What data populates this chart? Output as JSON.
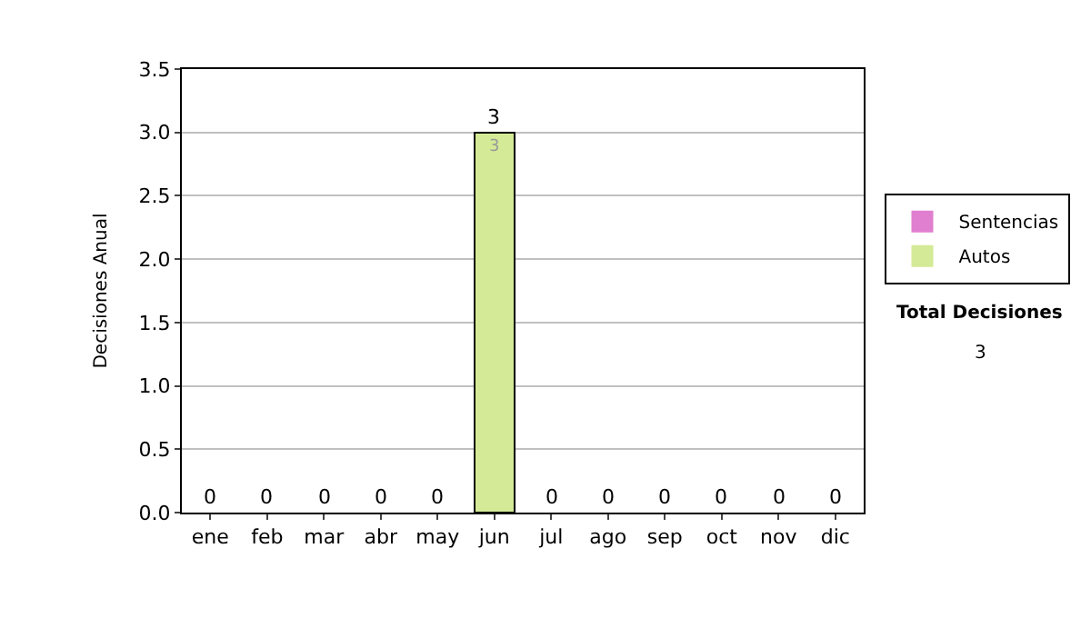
{
  "chart_data": {
    "type": "bar",
    "stacked": true,
    "ylabel": "Decisiones Anual",
    "categories": [
      "ene",
      "feb",
      "mar",
      "abr",
      "may",
      "jun",
      "jul",
      "ago",
      "sep",
      "oct",
      "nov",
      "dic"
    ],
    "series": [
      {
        "name": "Sentencias",
        "color": "#e07fd0",
        "values": [
          0,
          0,
          0,
          0,
          0,
          0,
          0,
          0,
          0,
          0,
          0,
          0
        ]
      },
      {
        "name": "Autos",
        "color": "#d4ea96",
        "values": [
          0,
          0,
          0,
          0,
          0,
          3,
          0,
          0,
          0,
          0,
          0,
          0
        ],
        "value_labels": [
          null,
          null,
          null,
          null,
          null,
          "3",
          null,
          null,
          null,
          null,
          null,
          null
        ]
      }
    ],
    "totals": [
      "0",
      "0",
      "0",
      "0",
      "0",
      "3",
      "0",
      "0",
      "0",
      "0",
      "0",
      "0"
    ],
    "ylim": [
      0,
      3.5
    ],
    "yticks": [
      {
        "value": 0,
        "label": "0.0"
      },
      {
        "value": 0.5,
        "label": "0.5"
      },
      {
        "value": 1,
        "label": "1.0"
      },
      {
        "value": 1.5,
        "label": "1.5"
      },
      {
        "value": 2,
        "label": "2.0"
      },
      {
        "value": 2.5,
        "label": "2.5"
      },
      {
        "value": 3,
        "label": "3.0"
      },
      {
        "value": 3.5,
        "label": "3.5"
      }
    ],
    "grid": "y",
    "legend": "right",
    "annotations": [
      "Total Decisiones",
      "3"
    ]
  }
}
